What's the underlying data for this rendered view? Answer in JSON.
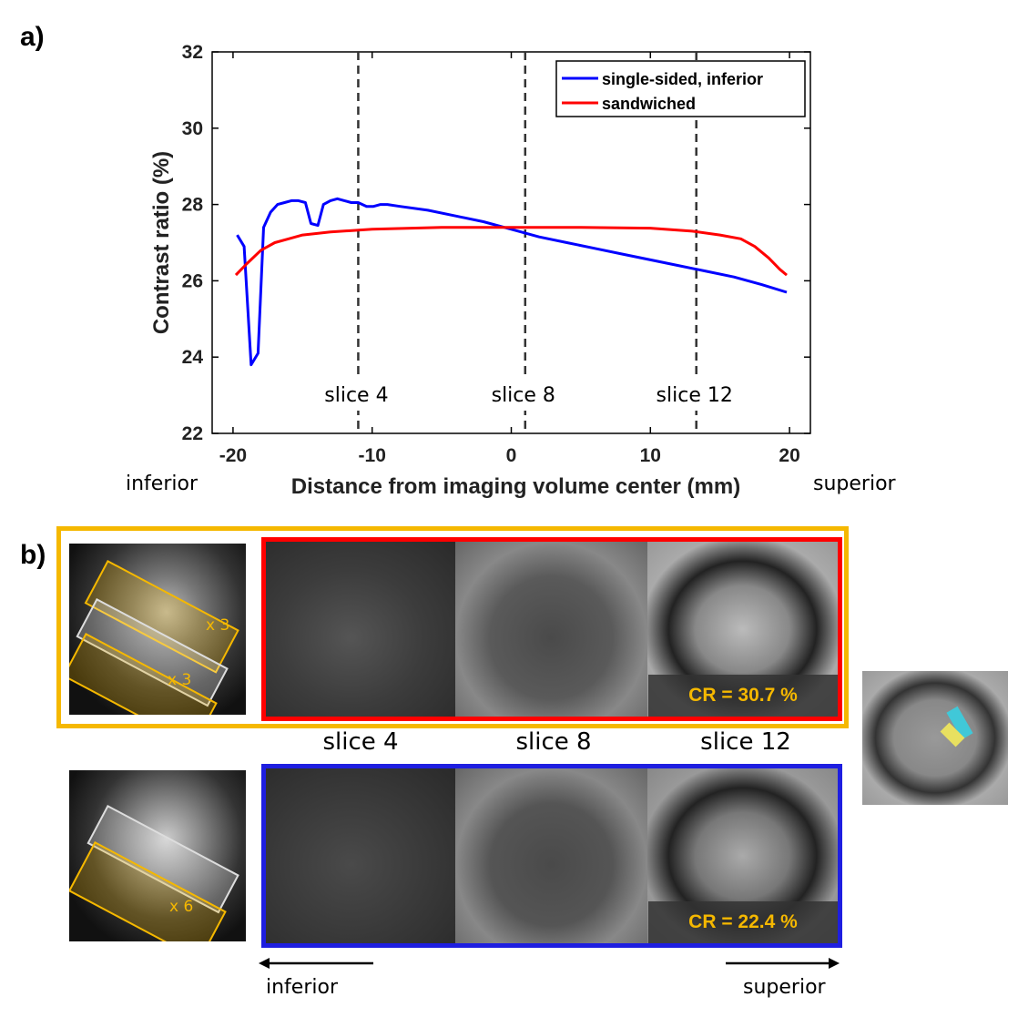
{
  "panel_a_label": "a)",
  "panel_b_label": "b)",
  "direction_left": "inferior",
  "direction_right": "superior",
  "chart_data": {
    "type": "line",
    "xlabel": "Distance from imaging volume center (mm)",
    "ylabel": "Contrast ratio (%)",
    "xlim": [
      -21.5,
      21.5
    ],
    "ylim": [
      22,
      32
    ],
    "xticks": [
      -20,
      -10,
      0,
      10,
      20
    ],
    "yticks": [
      22,
      24,
      26,
      28,
      30,
      32
    ],
    "legend_position": "top-right",
    "series": [
      {
        "name": "single-sided, inferior",
        "color": "#0000ff",
        "x": [
          -19.7,
          -19.2,
          -18.7,
          -18.2,
          -17.8,
          -17.3,
          -16.8,
          -16.3,
          -15.8,
          -15.3,
          -14.8,
          -14.4,
          -13.9,
          -13.5,
          -13.0,
          -12.5,
          -12.0,
          -11.5,
          -11.0,
          -10.4,
          -9.9,
          -9.4,
          -8.9,
          -8.0,
          -6.0,
          -4.0,
          -2.0,
          0.0,
          2.0,
          4.0,
          6.0,
          8.0,
          10.0,
          12.0,
          14.0,
          16.0,
          18.0,
          19.8
        ],
        "y": [
          27.2,
          26.9,
          23.8,
          24.1,
          27.4,
          27.8,
          28.0,
          28.05,
          28.1,
          28.1,
          28.05,
          27.5,
          27.45,
          28.0,
          28.1,
          28.15,
          28.1,
          28.05,
          28.05,
          27.95,
          27.95,
          28.0,
          28.0,
          27.95,
          27.85,
          27.7,
          27.55,
          27.35,
          27.15,
          27.0,
          26.85,
          26.7,
          26.55,
          26.4,
          26.25,
          26.1,
          25.9,
          25.7
        ]
      },
      {
        "name": "sandwiched",
        "color": "#ff0000",
        "x": [
          -19.8,
          -19.0,
          -18.0,
          -17.0,
          -16.0,
          -15.0,
          -13.0,
          -10.0,
          -5.0,
          0.0,
          5.0,
          10.0,
          13.0,
          15.0,
          16.5,
          17.5,
          18.5,
          19.3,
          19.8
        ],
        "y": [
          26.15,
          26.45,
          26.8,
          27.0,
          27.1,
          27.2,
          27.28,
          27.35,
          27.4,
          27.4,
          27.4,
          27.38,
          27.3,
          27.2,
          27.1,
          26.9,
          26.6,
          26.3,
          26.15
        ]
      }
    ],
    "vlines": [
      {
        "x": -11.0,
        "label": "slice 4"
      },
      {
        "x": 1.0,
        "label": "slice 8"
      },
      {
        "x": 13.3,
        "label": "slice 12"
      }
    ]
  },
  "panel_b": {
    "slice_labels": [
      "slice 4",
      "slice 8",
      "slice 12"
    ],
    "top_row": {
      "cr_text": "CR = 30.7 %",
      "slab_upper": "x 3",
      "slab_lower": "x 3"
    },
    "bottom_row": {
      "cr_text": "CR = 22.4 %",
      "slab_lower": "x 6"
    },
    "arrow_left_label": "inferior",
    "arrow_right_label": "superior",
    "colors": {
      "orange": "#f5b800",
      "red": "#ff0000",
      "blue": "#1e1ee0"
    }
  }
}
